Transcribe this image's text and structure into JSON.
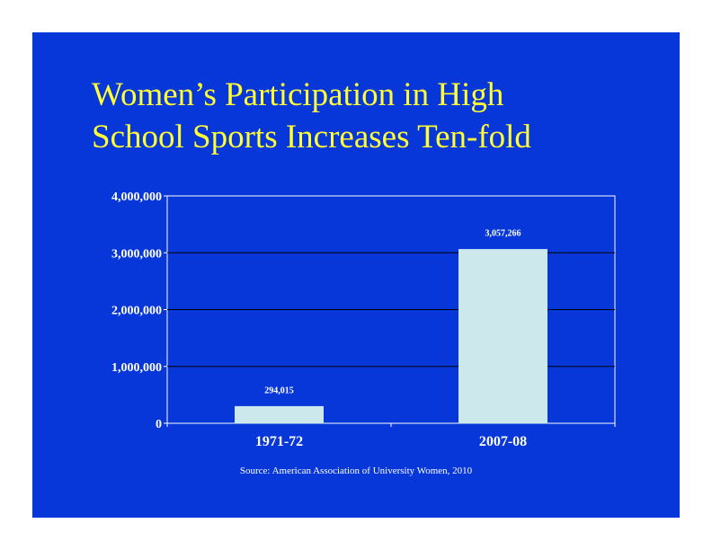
{
  "title_lines": [
    "Women’s Participation in  High",
    "School Sports Increases Ten-fold"
  ],
  "source": "Source: American Association of University Women, 2010",
  "colors": {
    "background": "#0737d9",
    "title": "#ffff33",
    "bar": "#cde8ec",
    "axis": "#ffffff",
    "grid": "#000000"
  },
  "chart_data": {
    "type": "bar",
    "categories": [
      "1971-72",
      "2007-08"
    ],
    "values": [
      294015,
      3057266
    ],
    "data_labels": [
      "294,015",
      "3,057,266"
    ],
    "yticks": [
      0,
      1000000,
      2000000,
      3000000,
      4000000
    ],
    "ytick_labels": [
      "0",
      "1,000,000",
      "2,000,000",
      "3,000,000",
      "4,000,000"
    ],
    "ylim": [
      0,
      4000000
    ],
    "grid": true,
    "legend": "none"
  }
}
